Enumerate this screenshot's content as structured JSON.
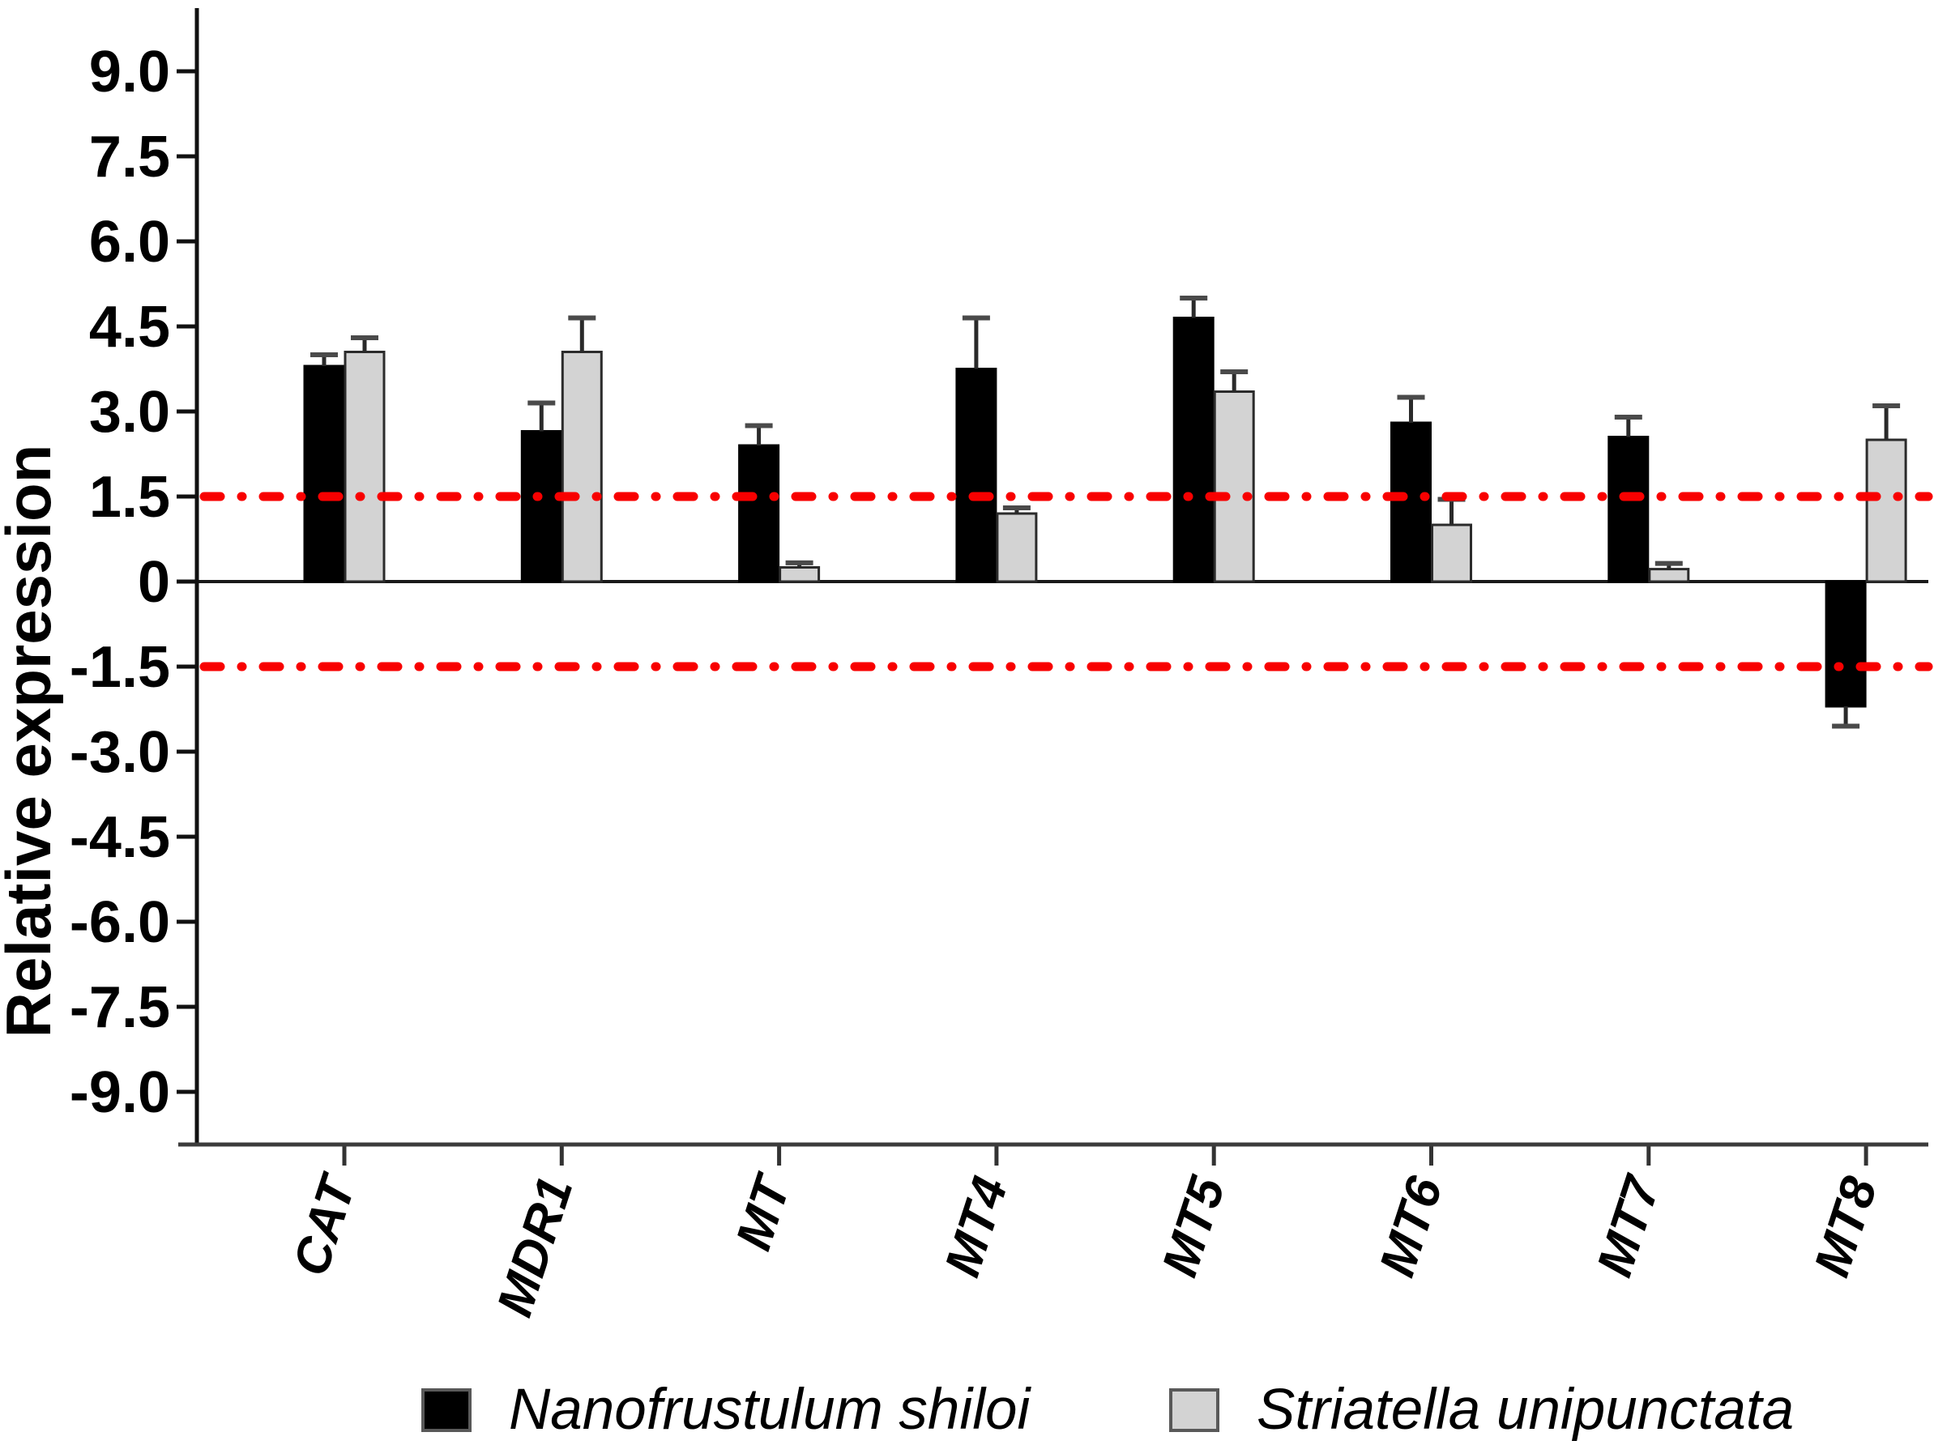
{
  "figure": {
    "background": "#ffffff",
    "accent_red": "#f80000"
  },
  "chart_data": {
    "type": "bar",
    "title": "",
    "xlabel": "",
    "ylabel": "Relative expression",
    "categories": [
      "CAT",
      "MDR1",
      "MT",
      "MT4",
      "MT5",
      "MT6",
      "MT7",
      "MT8"
    ],
    "series": [
      {
        "name": "Nanofrustulum shiloi",
        "color": "#000000",
        "edge": "#000000",
        "values": [
          3.8,
          2.65,
          2.4,
          3.75,
          4.65,
          2.8,
          2.55,
          -2.2
        ],
        "errors": [
          0.2,
          0.5,
          0.35,
          0.9,
          0.35,
          0.45,
          0.35,
          0.35
        ]
      },
      {
        "name": "Striatella unipunctata",
        "color": "#d3d3d3",
        "edge": "#2b2b2b",
        "values": [
          4.05,
          4.05,
          0.25,
          1.2,
          3.35,
          1.0,
          0.22,
          2.5
        ],
        "errors": [
          0.25,
          0.6,
          0.08,
          0.1,
          0.35,
          0.45,
          0.1,
          0.6
        ]
      }
    ],
    "error_bars": "one-sided, away from zero",
    "y_ticks": [
      9.0,
      7.5,
      6.0,
      4.5,
      3.0,
      1.5,
      0,
      -1.5,
      -3.0,
      -4.5,
      -6.0,
      -7.5,
      -9.0
    ],
    "y_tick_labels": [
      "9.0",
      "7.5",
      "6.0",
      "4.5",
      "3.0",
      "1.5",
      "0",
      "-1.5",
      "-3.0",
      "-4.5",
      "-6.0",
      "-7.5",
      "-9.0"
    ],
    "ylim": [
      -10,
      10
    ],
    "grid": false,
    "reference_lines": [
      {
        "y": 1.5,
        "color": "#f80000",
        "style": "dash-dot"
      },
      {
        "y": -1.5,
        "color": "#f80000",
        "style": "dash-dot"
      }
    ],
    "legend_position": "bottom",
    "bar_layout": "pairs centered on category ticks"
  }
}
